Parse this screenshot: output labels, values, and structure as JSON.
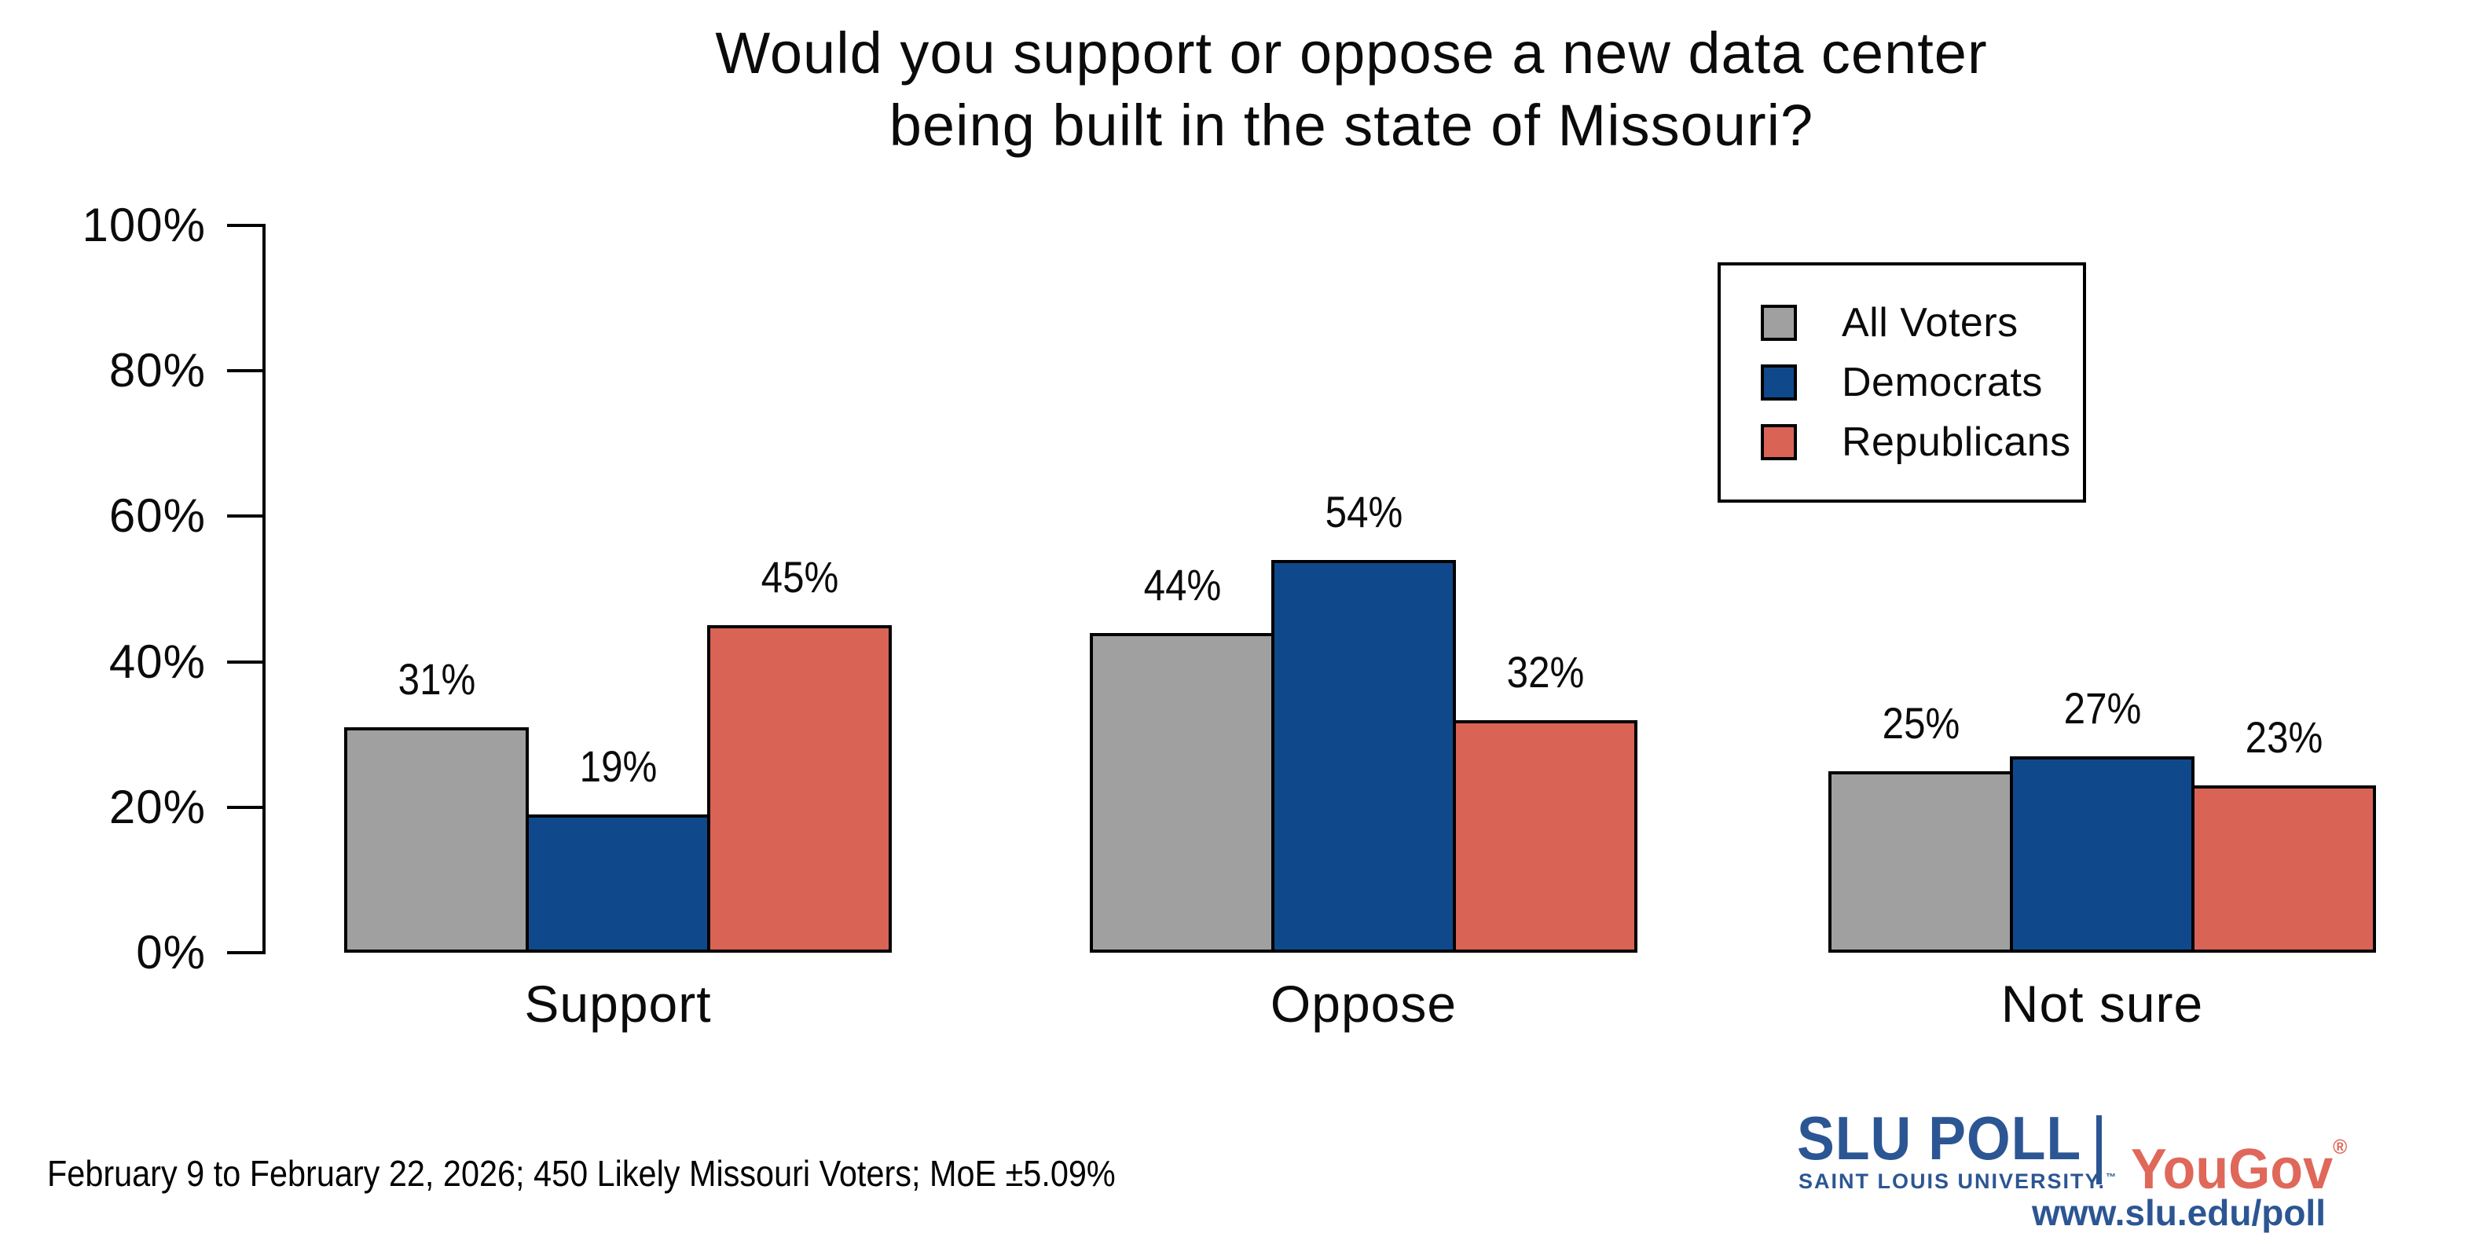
{
  "title": {
    "line1": "Would you support or oppose a new data center",
    "line2": "being built in the state of Missouri?"
  },
  "chart_data": {
    "type": "bar",
    "categories": [
      "Support",
      "Oppose",
      "Not sure"
    ],
    "series": [
      {
        "name": "All Voters",
        "color": "#A0A0A0",
        "values": [
          31,
          44,
          25
        ]
      },
      {
        "name": "Democrats",
        "color": "#10498B",
        "values": [
          19,
          54,
          27
        ]
      },
      {
        "name": "Republicans",
        "color": "#D96456",
        "values": [
          45,
          32,
          23
        ]
      }
    ],
    "value_labels": [
      [
        "31%",
        "44%",
        "25%"
      ],
      [
        "19%",
        "54%",
        "27%"
      ],
      [
        "45%",
        "32%",
        "23%"
      ]
    ],
    "y_ticks": [
      "0%",
      "20%",
      "40%",
      "60%",
      "80%",
      "100%"
    ],
    "ylim": [
      0,
      100
    ],
    "grid": false,
    "legend_position": "top-right",
    "legend_entries": [
      "All Voters",
      "Democrats",
      "Republicans"
    ]
  },
  "footnote": "February 9 to February 22, 2026; 450 Likely Missouri Voters; MoE ±5.09%",
  "branding": {
    "slu_poll": "SLU POLL",
    "slu_sub": "SAINT LOUIS UNIVERSITY.",
    "slu_sub_tm": "™",
    "yougov": "YouGov",
    "yougov_reg": "®",
    "url": "www.slu.edu/poll",
    "slu_blue": "#2C5693",
    "yougov_red": "#DF685A"
  }
}
